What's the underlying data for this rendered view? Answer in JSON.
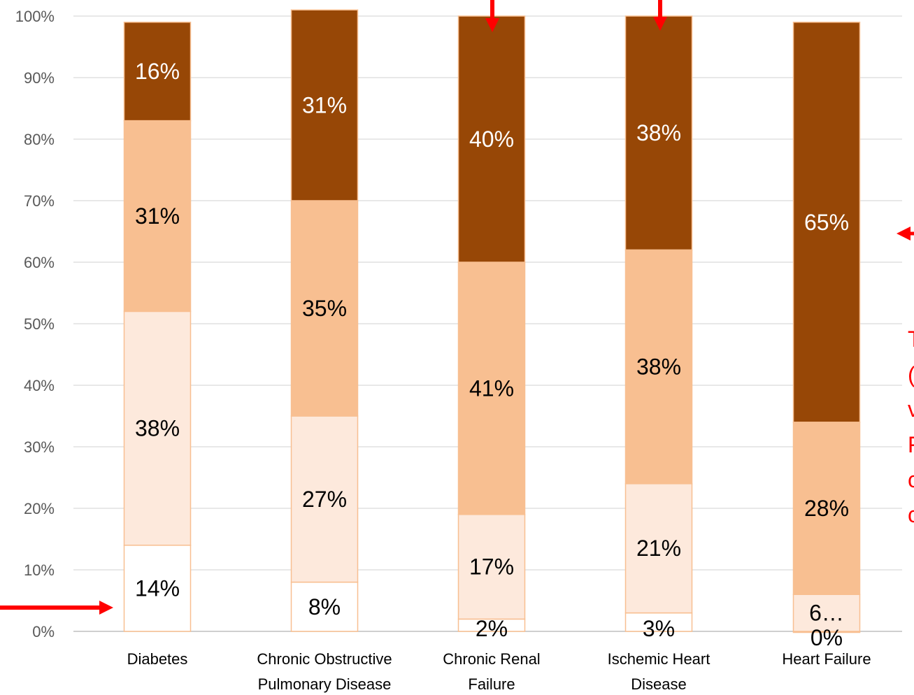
{
  "chart_data": {
    "type": "bar",
    "stacked": true,
    "percent_stacked": true,
    "categories": [
      [
        "Diabetes"
      ],
      [
        "Chronic Obstructive",
        "Pulmonary Disease"
      ],
      [
        "Chronic Renal",
        "Failure"
      ],
      [
        "Ischemic Heart",
        "Disease"
      ],
      [
        "Heart Failure"
      ]
    ],
    "series": [
      {
        "values": [
          14,
          8,
          2,
          3,
          0
        ],
        "labels": [
          "14%",
          "8%",
          "2%",
          "3%",
          "0%"
        ],
        "color": "#ffffff",
        "label_color": "#000000"
      },
      {
        "values": [
          38,
          27,
          17,
          21,
          6
        ],
        "labels": [
          "38%",
          "27%",
          "17%",
          "21%",
          "6…"
        ],
        "color": "#fde9dc",
        "label_color": "#000000"
      },
      {
        "values": [
          31,
          35,
          41,
          38,
          28
        ],
        "labels": [
          "31%",
          "35%",
          "41%",
          "38%",
          "28%"
        ],
        "color": "#f8bf91",
        "label_color": "#000000"
      },
      {
        "values": [
          16,
          31,
          40,
          38,
          65
        ],
        "labels": [
          "16%",
          "31%",
          "40%",
          "38%",
          "65%"
        ],
        "color": "#974706",
        "label_color": "#ffffff"
      }
    ],
    "yticks": [
      "0%",
      "10%",
      "20%",
      "30%",
      "40%",
      "50%",
      "60%",
      "70%",
      "80%",
      "90%",
      "100%"
    ],
    "ylim": [
      0,
      100
    ],
    "grid": true,
    "title": "",
    "xlabel": "",
    "ylabel": ""
  },
  "annotation_fragments": [
    "T",
    "(",
    "v",
    "F",
    "c",
    "c"
  ],
  "colors": {
    "arrow": "#ff0000",
    "bar_border": "#f8bf91",
    "grid": "#d9d9d9",
    "axis": "#bfbfbf"
  }
}
